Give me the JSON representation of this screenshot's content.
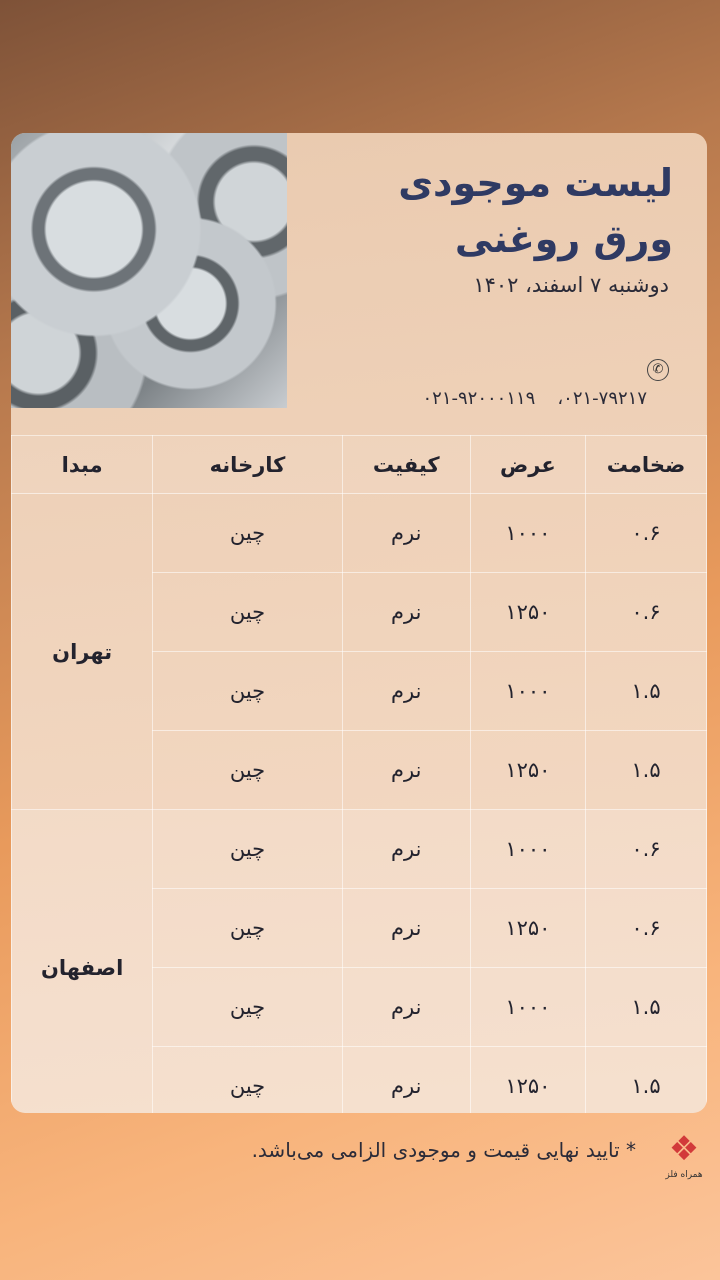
{
  "header": {
    "title_line1": "لیست موجودی",
    "title_line2": "ورق روغنی",
    "date": "دوشنبه ۷ اسفند، ۱۴۰۲",
    "phone_icon": "phone-icon",
    "phones": [
      "۰۲۱-۹۲۰۰۰۱۱۹",
      "۰۲۱-۷۹۲۱۷"
    ],
    "separator": "،"
  },
  "table": {
    "columns": [
      "ضخامت",
      "عرض",
      "کیفیت",
      "کارخانه",
      "مبدا"
    ],
    "groups": [
      {
        "origin": "تهران",
        "rows": [
          [
            "۰.۶",
            "۱۰۰۰",
            "نرم",
            "چین"
          ],
          [
            "۰.۶",
            "۱۲۵۰",
            "نرم",
            "چین"
          ],
          [
            "۱.۵",
            "۱۰۰۰",
            "نرم",
            "چین"
          ],
          [
            "۱.۵",
            "۱۲۵۰",
            "نرم",
            "چین"
          ]
        ]
      },
      {
        "origin": "اصفهان",
        "rows": [
          [
            "۰.۶",
            "۱۰۰۰",
            "نرم",
            "چین"
          ],
          [
            "۰.۶",
            "۱۲۵۰",
            "نرم",
            "چین"
          ],
          [
            "۱.۵",
            "۱۰۰۰",
            "نرم",
            "چین"
          ],
          [
            "۱.۵",
            "۱۲۵۰",
            "نرم",
            "چین"
          ]
        ]
      }
    ]
  },
  "footer": {
    "note": "* تایید نهایی قیمت و موجودی الزامی می‌باشد.",
    "logo_text": "همراه فلز"
  },
  "colors": {
    "title": "#2f3a63",
    "logo": "#d23a3a"
  }
}
